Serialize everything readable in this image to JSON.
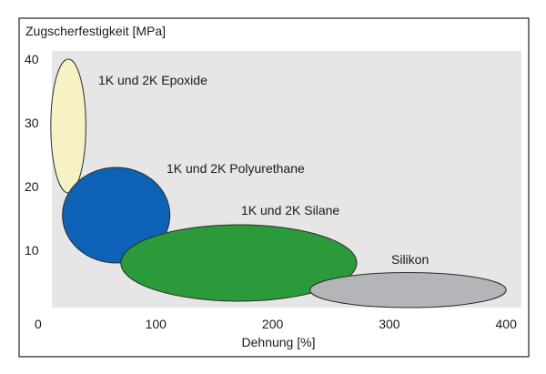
{
  "chart_data": {
    "type": "scatter",
    "title": "",
    "ylabel": "Zugscherfestigkeit [MPa]",
    "xlabel": "Dehnung [%]",
    "xlim": [
      0,
      400
    ],
    "ylim": [
      0,
      40
    ],
    "x_ticks": [
      "100",
      "200",
      "300",
      "400"
    ],
    "y_ticks": [
      "10",
      "20",
      "30",
      "40"
    ],
    "origin_label": "0",
    "grid": false,
    "plot_background": "#e6e6e6",
    "regions": [
      {
        "name": "1K und 2K Epoxide",
        "x_min": 10,
        "x_max": 40,
        "y_min": 19,
        "y_max": 40,
        "color": "#f6f2c4"
      },
      {
        "name": "1K und 2K Polyurethane",
        "x_min": 20,
        "x_max": 112,
        "y_min": 8,
        "y_max": 23,
        "color": "#0e62b5"
      },
      {
        "name": "1K und 2K Silane",
        "x_min": 70,
        "x_max": 272,
        "y_min": 2,
        "y_max": 14,
        "color": "#2a9a3b"
      },
      {
        "name": "Silikon",
        "x_min": 232,
        "x_max": 400,
        "y_min": 1,
        "y_max": 6.5,
        "color": "#b4b5b8"
      }
    ]
  }
}
